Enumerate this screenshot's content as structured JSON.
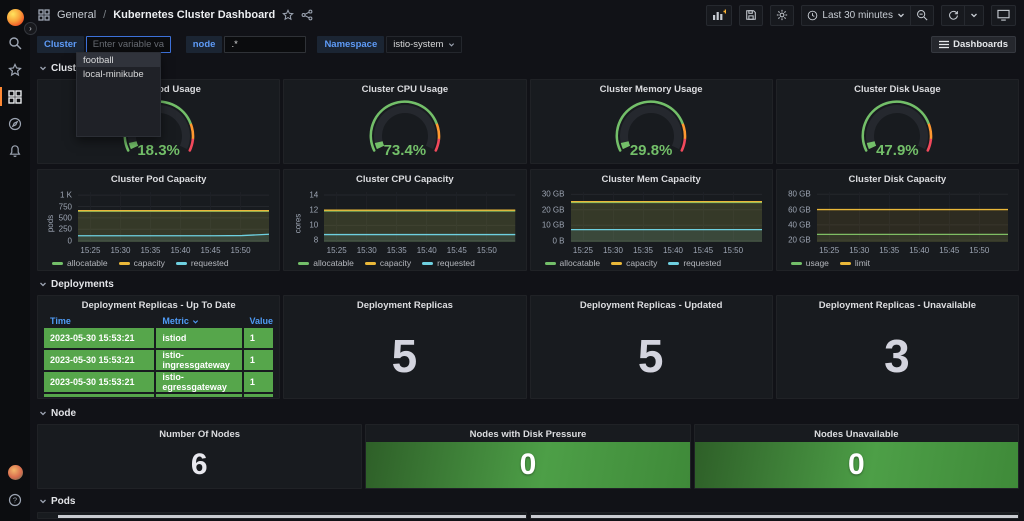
{
  "sidebar": {
    "icons": [
      "grafana-logo",
      "search",
      "star",
      "dashboards-grid",
      "explore-compass",
      "alerts-bell",
      "avatar",
      "help"
    ]
  },
  "header": {
    "breadcrumb_section": "General",
    "breadcrumb_sep": "/",
    "title": "Kubernetes Cluster Dashboard",
    "toolbar_icons": [
      "add-panel",
      "save-dashboard",
      "dashboard-settings",
      "time-range",
      "zoom-out",
      "refresh",
      "cycle-view"
    ],
    "time_range": "Last 30 minutes",
    "dashboards_button": "Dashboards"
  },
  "variables": {
    "cluster_label": "Cluster",
    "cluster_placeholder": "Enter variable value",
    "dropdown_options": [
      "football",
      "local-minikube"
    ],
    "node_label": "node",
    "node_value": ".*",
    "namespace_label": "Namespace",
    "namespace_value": "istio-system"
  },
  "sections": {
    "cluster": "Cluster",
    "deployments": "Deployments",
    "node": "Node",
    "pods": "Pods"
  },
  "colors": {
    "green": "#73BF69",
    "yellow": "#EAB839",
    "cyan": "#6ED0E0",
    "orange": "#FF9830",
    "red": "#F2495C",
    "table_green": "#56A64B"
  },
  "cluster_section": {
    "gauges": [
      {
        "title": "Cluster Pod Usage",
        "value": "18.3%"
      },
      {
        "title": "Cluster CPU Usage",
        "value": "73.4%"
      },
      {
        "title": "Cluster Memory Usage",
        "value": "29.8%"
      },
      {
        "title": "Cluster Disk Usage",
        "value": "47.9%"
      }
    ],
    "capacity_charts": [
      {
        "type": "area",
        "title": "Cluster Pod Capacity",
        "ylabel": "pods",
        "ymin": -30,
        "ymax": 1070,
        "yticks": [
          {
            "v": 0,
            "label": "0"
          },
          {
            "v": 250,
            "label": "250"
          },
          {
            "v": 500,
            "label": "500"
          },
          {
            "v": 750,
            "label": "750"
          },
          {
            "v": 1000,
            "label": "1 K"
          }
        ],
        "xticks": [
          "15:25",
          "15:30",
          "15:35",
          "15:40",
          "15:45",
          "15:50"
        ],
        "xtick_pos": [
          0.065,
          0.222,
          0.379,
          0.536,
          0.693,
          0.85
        ],
        "series": [
          {
            "name": "allocatable",
            "color": "#73BF69",
            "values": [
              648,
              648
            ]
          },
          {
            "name": "capacity",
            "color": "#EAB839",
            "values": [
              660,
              660
            ]
          },
          {
            "name": "requested",
            "color": "#6ED0E0",
            "values": [
              108,
              108,
              108,
              108,
              108,
              108,
              112,
              140
            ]
          }
        ]
      },
      {
        "type": "area",
        "title": "Cluster CPU Capacity",
        "ylabel": "cores",
        "ymin": 7.8,
        "ymax": 14.4,
        "yticks": [
          {
            "v": 8,
            "label": "8"
          },
          {
            "v": 10,
            "label": "10"
          },
          {
            "v": 12,
            "label": "12"
          },
          {
            "v": 14,
            "label": "14"
          }
        ],
        "xticks": [
          "15:25",
          "15:30",
          "15:35",
          "15:40",
          "15:45",
          "15:50"
        ],
        "xtick_pos": [
          0.065,
          0.222,
          0.379,
          0.536,
          0.693,
          0.85
        ],
        "series": [
          {
            "name": "allocatable",
            "color": "#73BF69",
            "values": [
              11.9,
              11.9
            ]
          },
          {
            "name": "capacity",
            "color": "#EAB839",
            "values": [
              12,
              12
            ]
          },
          {
            "name": "requested",
            "color": "#6ED0E0",
            "values": [
              8.78,
              8.78
            ]
          }
        ]
      },
      {
        "type": "area",
        "title": "Cluster Mem Capacity",
        "ylabel": "",
        "ymin": -0.8,
        "ymax": 31.5,
        "yticks": [
          {
            "v": 0,
            "label": "0 B"
          },
          {
            "v": 10,
            "label": "10 GB"
          },
          {
            "v": 20,
            "label": "20 GB"
          },
          {
            "v": 30,
            "label": "30 GB"
          }
        ],
        "xticks": [
          "15:25",
          "15:30",
          "15:35",
          "15:40",
          "15:45",
          "15:50"
        ],
        "xtick_pos": [
          0.065,
          0.222,
          0.379,
          0.536,
          0.693,
          0.85
        ],
        "series": [
          {
            "name": "allocatable",
            "color": "#73BF69",
            "values": [
              24.7,
              24.7
            ]
          },
          {
            "name": "capacity",
            "color": "#EAB839",
            "values": [
              25.3,
              25.3
            ]
          },
          {
            "name": "requested",
            "color": "#6ED0E0",
            "values": [
              7.2,
              7.2
            ]
          }
        ]
      },
      {
        "type": "area",
        "title": "Cluster Disk Capacity",
        "ylabel": "",
        "ymin": 17.5,
        "ymax": 83,
        "yticks": [
          {
            "v": 20,
            "label": "20 GB"
          },
          {
            "v": 40,
            "label": "40 GB"
          },
          {
            "v": 60,
            "label": "60 GB"
          },
          {
            "v": 80,
            "label": "80 GB"
          }
        ],
        "xticks": [
          "15:25",
          "15:30",
          "15:35",
          "15:40",
          "15:45",
          "15:50"
        ],
        "xtick_pos": [
          0.065,
          0.222,
          0.379,
          0.536,
          0.693,
          0.85
        ],
        "series": [
          {
            "name": "usage",
            "color": "#73BF69",
            "values": [
              27.5,
              27.5
            ]
          },
          {
            "name": "limit",
            "color": "#EAB839",
            "values": [
              60,
              60
            ]
          }
        ]
      }
    ]
  },
  "deployments_section": {
    "table": {
      "title": "Deployment Replicas - Up To Date",
      "columns": {
        "time": "Time",
        "metric": "Metric",
        "value": "Value"
      },
      "rows": [
        {
          "time": "2023-05-30 15:53:21",
          "metric": "istiod",
          "value": "1"
        },
        {
          "time": "2023-05-30 15:53:21",
          "metric": "istio-ingressgateway",
          "value": "1"
        },
        {
          "time": "2023-05-30 15:53:21",
          "metric": "istio-egressgateway",
          "value": "1"
        }
      ]
    },
    "stats": [
      {
        "title": "Deployment Replicas",
        "value": "5"
      },
      {
        "title": "Deployment Replicas - Updated",
        "value": "5"
      },
      {
        "title": "Deployment Replicas - Unavailable",
        "value": "3"
      }
    ]
  },
  "node_section": {
    "stats": [
      {
        "title": "Number Of Nodes",
        "value": "6",
        "style": "dark"
      },
      {
        "title": "Nodes with Disk Pressure",
        "value": "0",
        "style": "green"
      },
      {
        "title": "Nodes Unavailable",
        "value": "0",
        "style": "green"
      }
    ]
  }
}
